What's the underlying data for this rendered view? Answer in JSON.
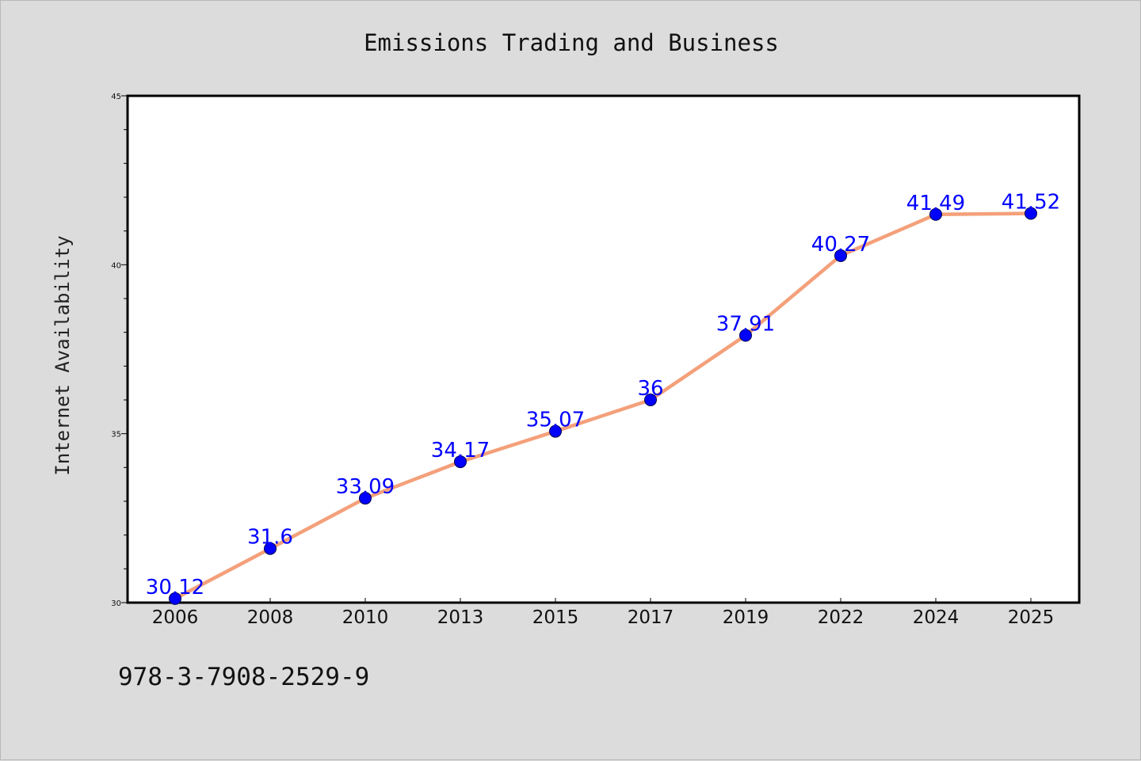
{
  "chart_data": {
    "type": "line",
    "title": "Emissions Trading and Business",
    "xlabel": "",
    "ylabel": "Internet Availability",
    "categories": [
      "2006",
      "2008",
      "2010",
      "2013",
      "2015",
      "2017",
      "2019",
      "2022",
      "2024",
      "2025"
    ],
    "series": [
      {
        "values": [
          30.12,
          31.6,
          33.09,
          34.17,
          35.07,
          36,
          37.91,
          40.27,
          41.49,
          41.52
        ],
        "labels": [
          "30.12",
          "31.6",
          "33.09",
          "34.17",
          "35.07",
          "36",
          "37.91",
          "40.27",
          "41.49",
          "41.52"
        ],
        "line_color": "#f4a07a",
        "marker_color": "#0000ff"
      }
    ],
    "ylim": [
      30,
      45
    ],
    "y_ticks": [
      "30",
      "35",
      "40",
      "45"
    ],
    "grid": false,
    "legend": "none"
  },
  "footer": {
    "text": "978-3-7908-2529-9"
  },
  "colors": {
    "background": "#dcdcdc",
    "plot_background": "#ffffff",
    "line": "#f4a07a",
    "marker": "#0000ff",
    "data_label": "#0000ff"
  }
}
